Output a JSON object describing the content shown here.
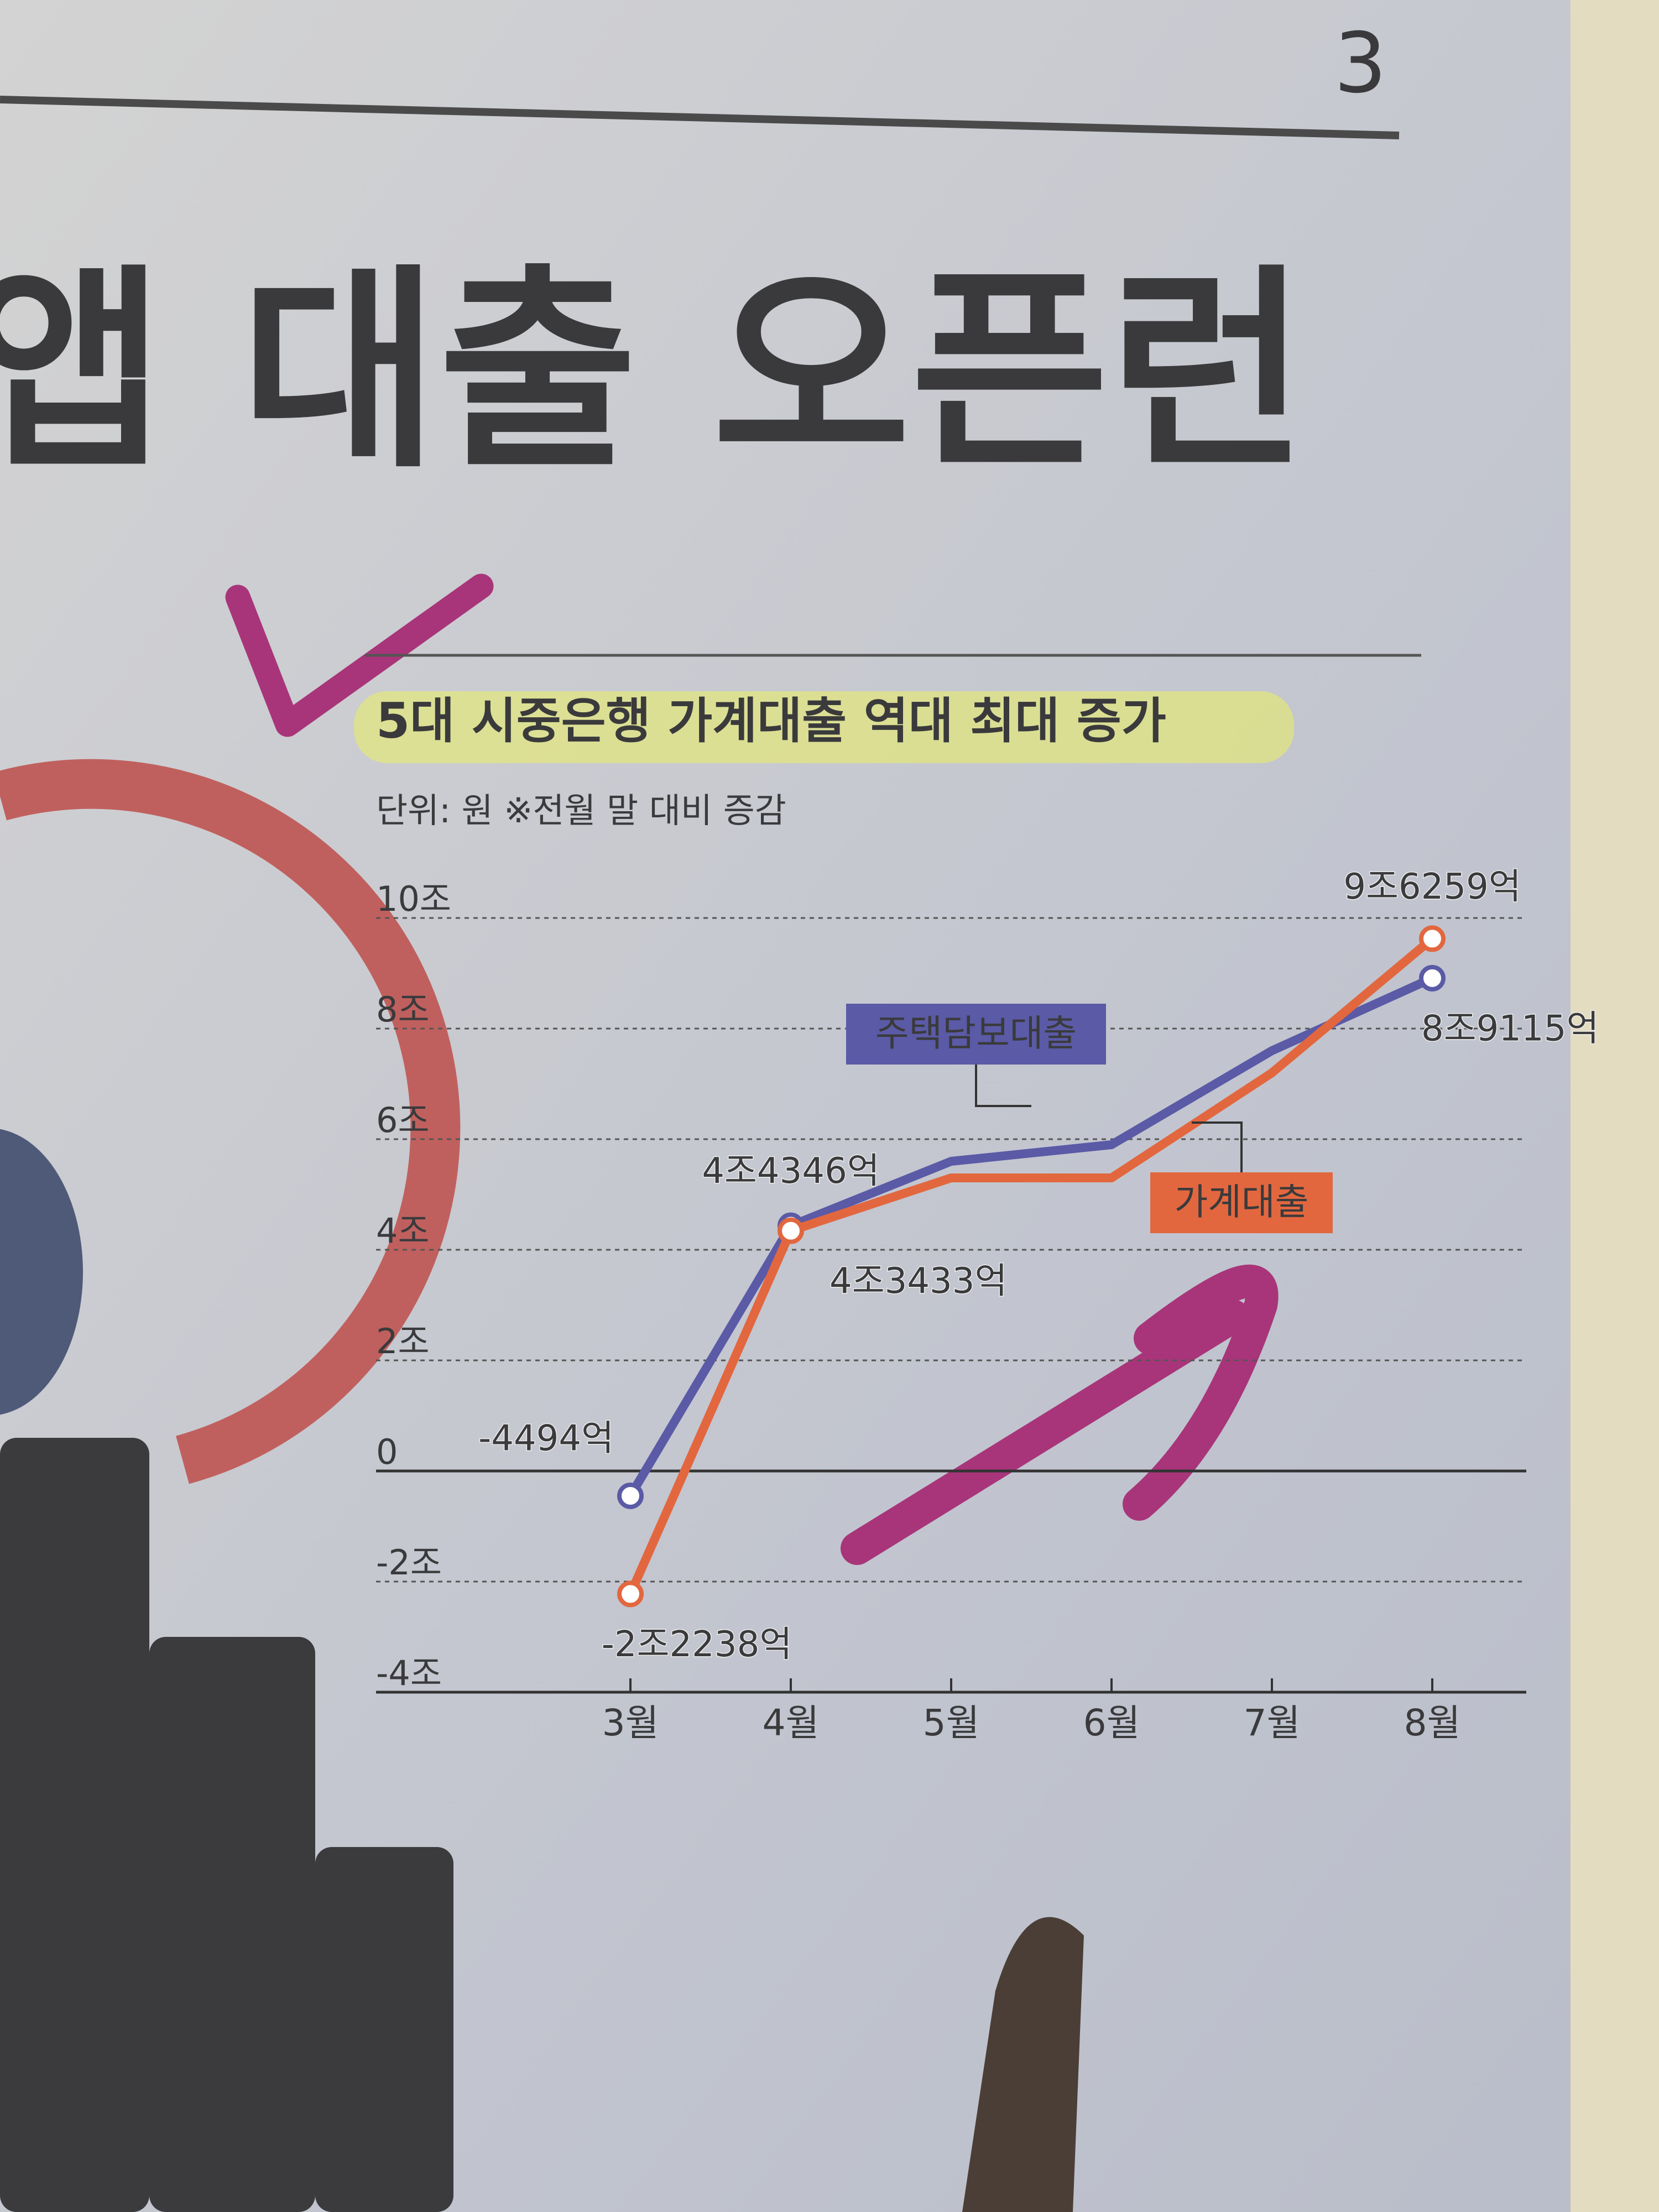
{
  "page_number": "3",
  "headline": "앱 대출 오픈런",
  "chart_data": {
    "type": "line",
    "title": "5대 시중은행 가계대출 역대 최대 증가",
    "subtitle": "단위: 원   ※전월 말 대비 증감",
    "categories": [
      "3월",
      "4월",
      "5월",
      "6월",
      "7월",
      "8월"
    ],
    "series": [
      {
        "name": "주택담보대출",
        "color": "#5a5aa6",
        "values": [
          -0.4494,
          4.4346,
          5.6,
          5.9,
          7.6,
          8.9115
        ],
        "value_labels": [
          "-4494억",
          "4조4346억",
          null,
          null,
          null,
          "8조9115억"
        ]
      },
      {
        "name": "가계대출",
        "color": "#e2673f",
        "values": [
          -2.2238,
          4.3433,
          5.3,
          5.3,
          7.2,
          9.6259
        ],
        "value_labels": [
          "-2조2238억",
          "4조3433억",
          null,
          null,
          null,
          "9조6259억"
        ]
      }
    ],
    "ylim": [
      -4,
      11
    ],
    "yticks": [
      {
        "value": -4,
        "label": "-4조"
      },
      {
        "value": -2,
        "label": "-2조"
      },
      0,
      {
        "value": 2,
        "label": "2조"
      },
      {
        "value": 4,
        "label": "4조"
      },
      {
        "value": 6,
        "label": "6조"
      },
      {
        "value": 8,
        "label": "8조"
      },
      {
        "value": 10,
        "label": "10조"
      }
    ],
    "grid": true
  }
}
